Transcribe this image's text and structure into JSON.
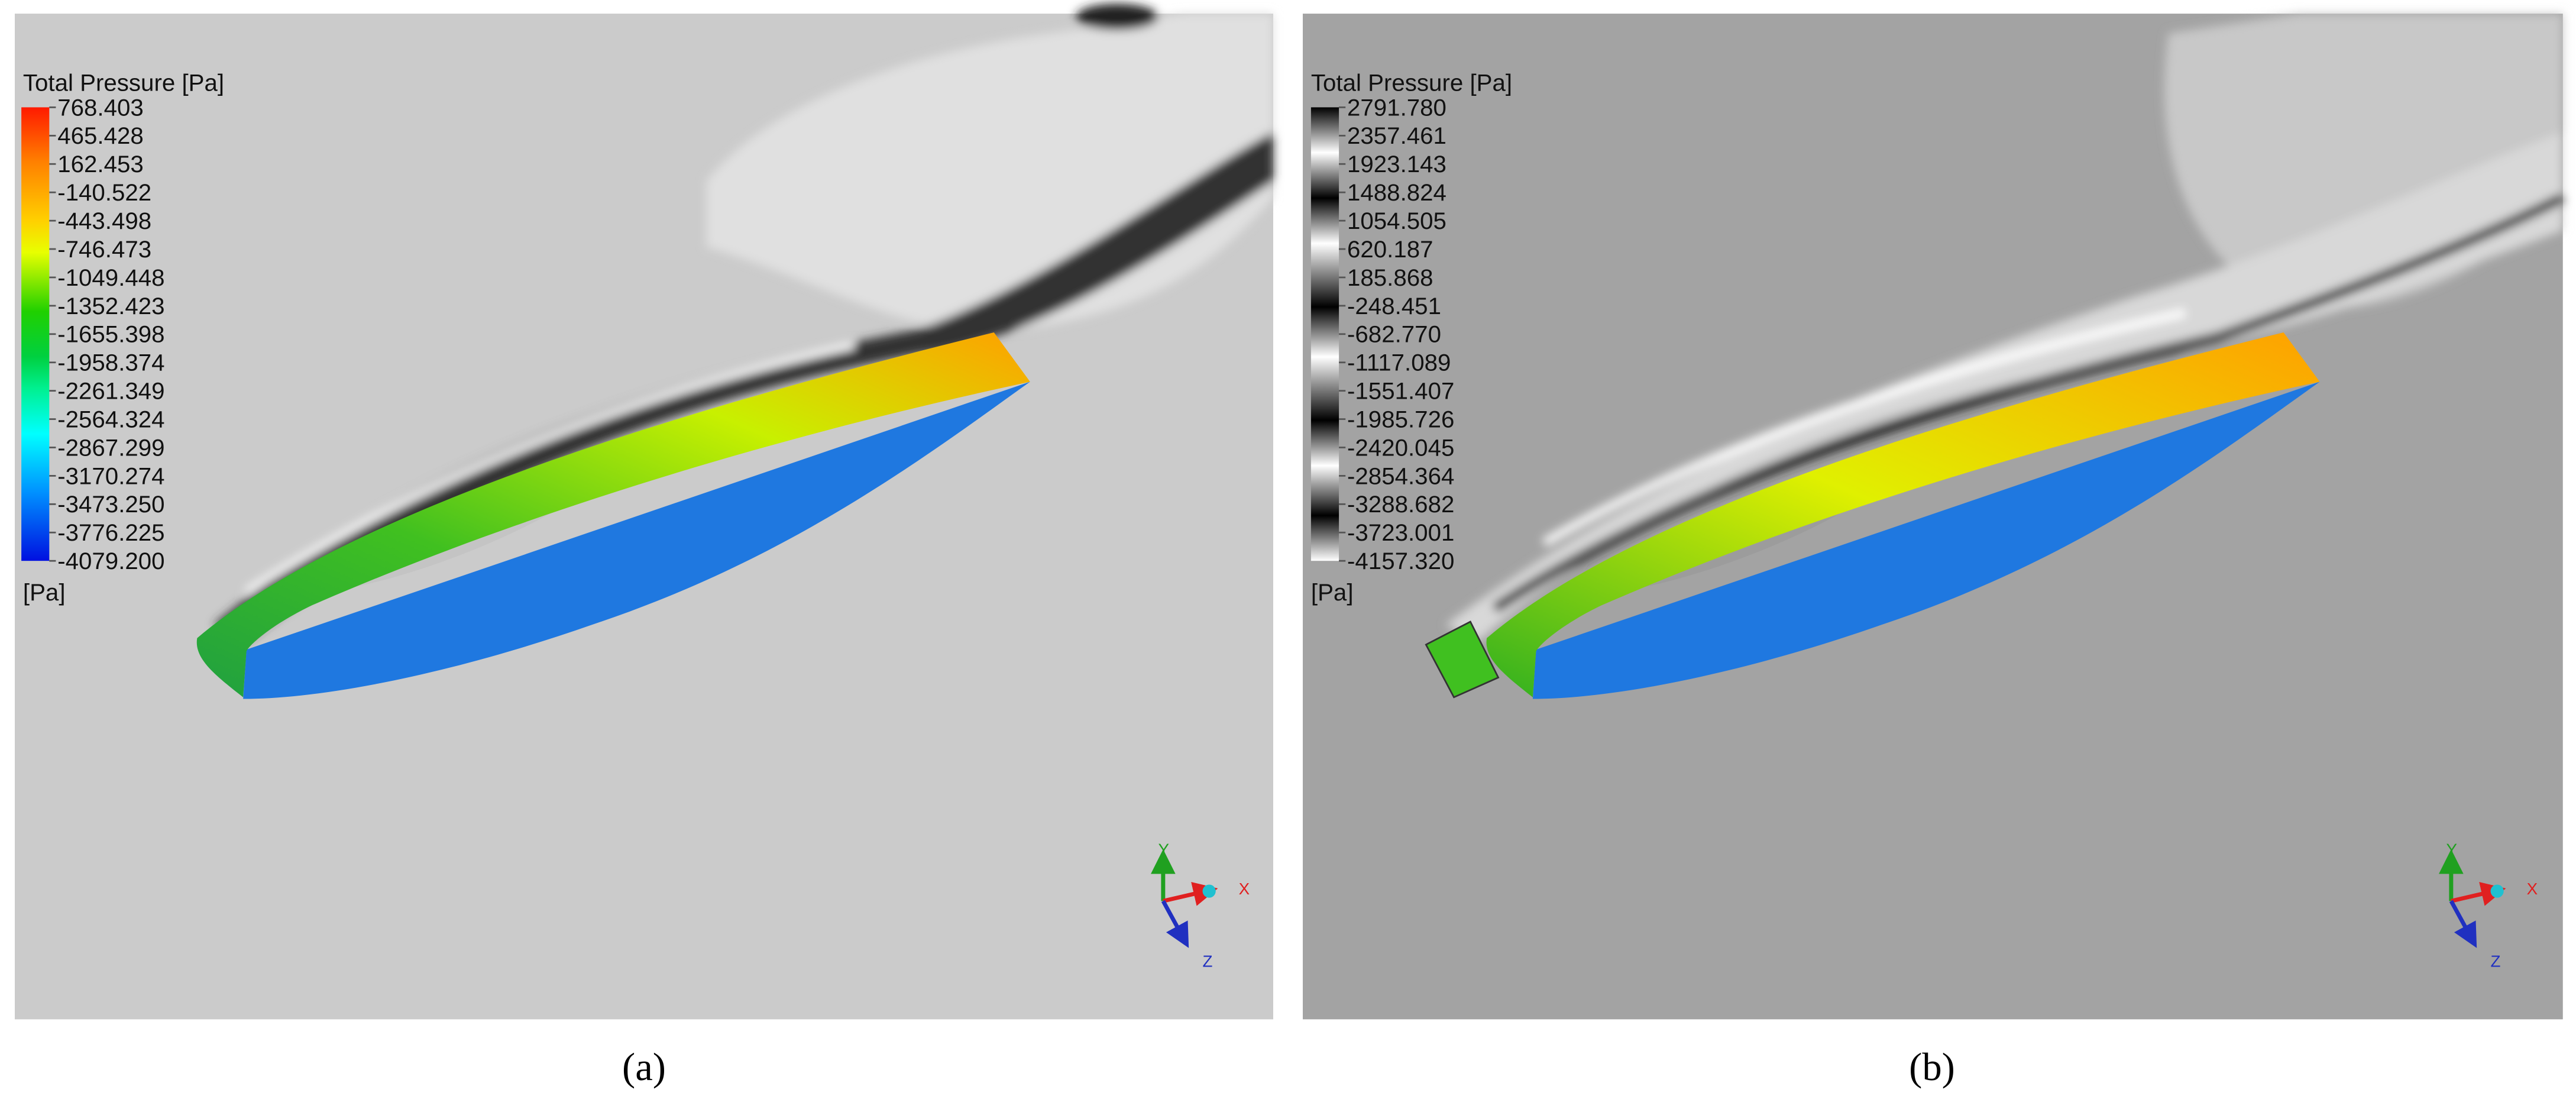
{
  "panels": [
    {
      "caption": "(a)",
      "legend": {
        "title": "Total Pressure [Pa]",
        "unit": "[Pa]",
        "colormap": "rainbow",
        "values": [
          "768.403",
          "465.428",
          "162.453",
          "-140.522",
          "-443.498",
          "-746.473",
          "-1049.448",
          "-1352.423",
          "-1655.398",
          "-1958.374",
          "-2261.349",
          "-2564.324",
          "-2867.299",
          "-3170.274",
          "-3473.250",
          "-3776.225",
          "-4079.200"
        ]
      },
      "background": "#cbcbcb",
      "axes": {
        "x": "X",
        "y": "Y",
        "z": "Z"
      }
    },
    {
      "caption": "(b)",
      "legend": {
        "title": "Total Pressure [Pa]",
        "unit": "[Pa]",
        "colormap": "banded-grayscale",
        "values": [
          "2791.780",
          "2357.461",
          "1923.143",
          "1488.824",
          "1054.505",
          "620.187",
          "185.868",
          "-248.451",
          "-682.770",
          "-1117.089",
          "-1551.407",
          "-1985.726",
          "-2420.045",
          "-2854.364",
          "-3288.682",
          "-3723.001",
          "-4157.320"
        ]
      },
      "background": "#a3a3a3",
      "axes": {
        "x": "X",
        "y": "Y",
        "z": "Z"
      }
    }
  ],
  "colors": {
    "x_axis": "#e02020",
    "y_axis": "#20a020",
    "z_axis": "#2030c0",
    "origin": "#20c0d0"
  }
}
